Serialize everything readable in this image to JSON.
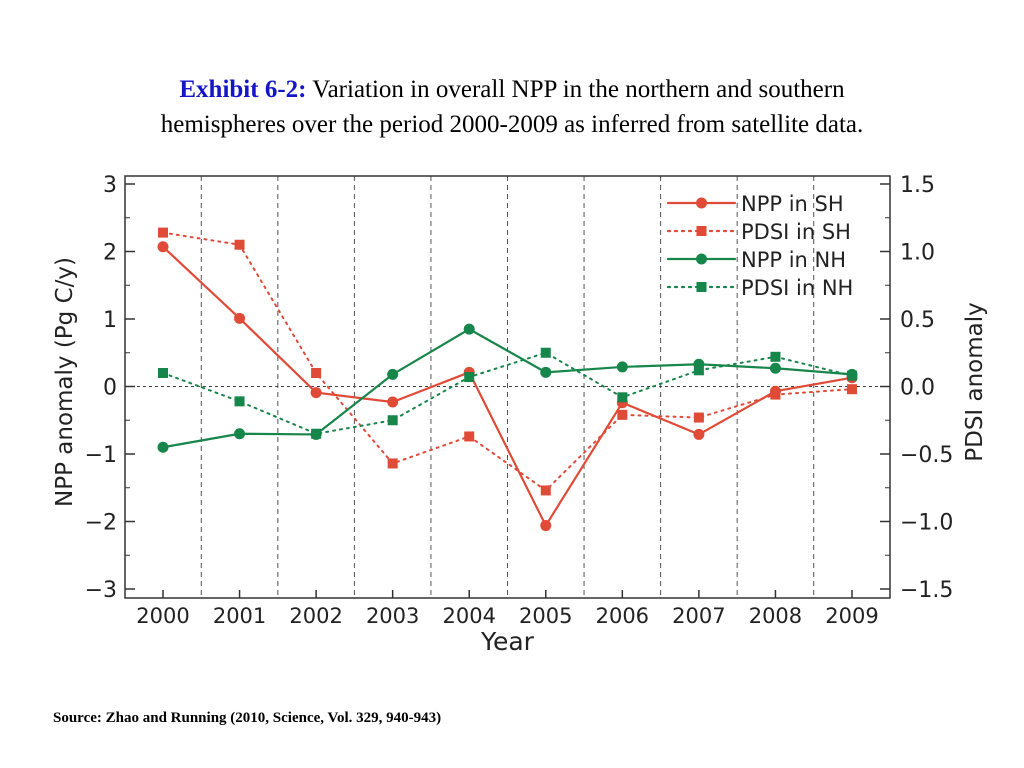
{
  "title": {
    "prefix": "Exhibit 6-2:",
    "line1": "Variation in overall NPP in the northern and southern",
    "line2": "hemispheres over the period 2000-2009 as inferred from satellite data."
  },
  "source": "Source: Zhao and Running (2010, Science, Vol. 329, 940-943)",
  "colors": {
    "red": "#e04b38",
    "green": "#17864a"
  },
  "chart_data": {
    "type": "line",
    "x": [
      2000,
      2001,
      2002,
      2003,
      2004,
      2005,
      2006,
      2007,
      2008,
      2009
    ],
    "xlabel": "Year",
    "ylabel": "NPP anomaly (Pg C/y)",
    "y2label": "PDSI anomaly",
    "ylim": [
      -3,
      3
    ],
    "y2lim": [
      -1.5,
      1.5
    ],
    "yticks": [
      3,
      2,
      1,
      0,
      -1,
      -2,
      -3
    ],
    "yticklabels": [
      "3",
      "2",
      "1",
      "0",
      "−1",
      "−2",
      "−3"
    ],
    "y2ticks": [
      1.5,
      1.0,
      0.5,
      0.0,
      -0.5,
      -1.0,
      -1.5
    ],
    "y2ticklabels": [
      "1.5",
      "1.0",
      "0.5",
      "0.0",
      "−0.5",
      "−1.0",
      "−1.5"
    ],
    "xticklabels": [
      "2000",
      "2001",
      "2002",
      "2003",
      "2004",
      "2005",
      "2006",
      "2007",
      "2008",
      "2009"
    ],
    "grid": "vertical dashed",
    "zero_line": "dashed",
    "legend_position": "top-right",
    "series": [
      {
        "name": "NPP in SH",
        "axis": "left",
        "color": "#e04b38",
        "line": "solid",
        "marker": "circle",
        "values": [
          2.07,
          1.01,
          -0.09,
          -0.23,
          0.21,
          -2.06,
          -0.24,
          -0.71,
          -0.07,
          0.13
        ]
      },
      {
        "name": "PDSI in SH",
        "axis": "right",
        "color": "#e04b38",
        "line": "dotted",
        "marker": "square",
        "values": [
          1.14,
          1.05,
          0.1,
          -0.57,
          -0.37,
          -0.77,
          -0.21,
          -0.23,
          -0.06,
          -0.02
        ]
      },
      {
        "name": "NPP in NH",
        "axis": "left",
        "color": "#17864a",
        "line": "solid",
        "marker": "circle",
        "values": [
          -0.9,
          -0.7,
          -0.71,
          0.18,
          0.85,
          0.21,
          0.29,
          0.33,
          0.27,
          0.18
        ]
      },
      {
        "name": "PDSI in NH",
        "axis": "right",
        "color": "#17864a",
        "line": "dotted",
        "marker": "square",
        "values": [
          0.1,
          -0.11,
          -0.35,
          -0.25,
          0.07,
          0.25,
          -0.08,
          0.12,
          0.22,
          0.08
        ]
      }
    ]
  }
}
